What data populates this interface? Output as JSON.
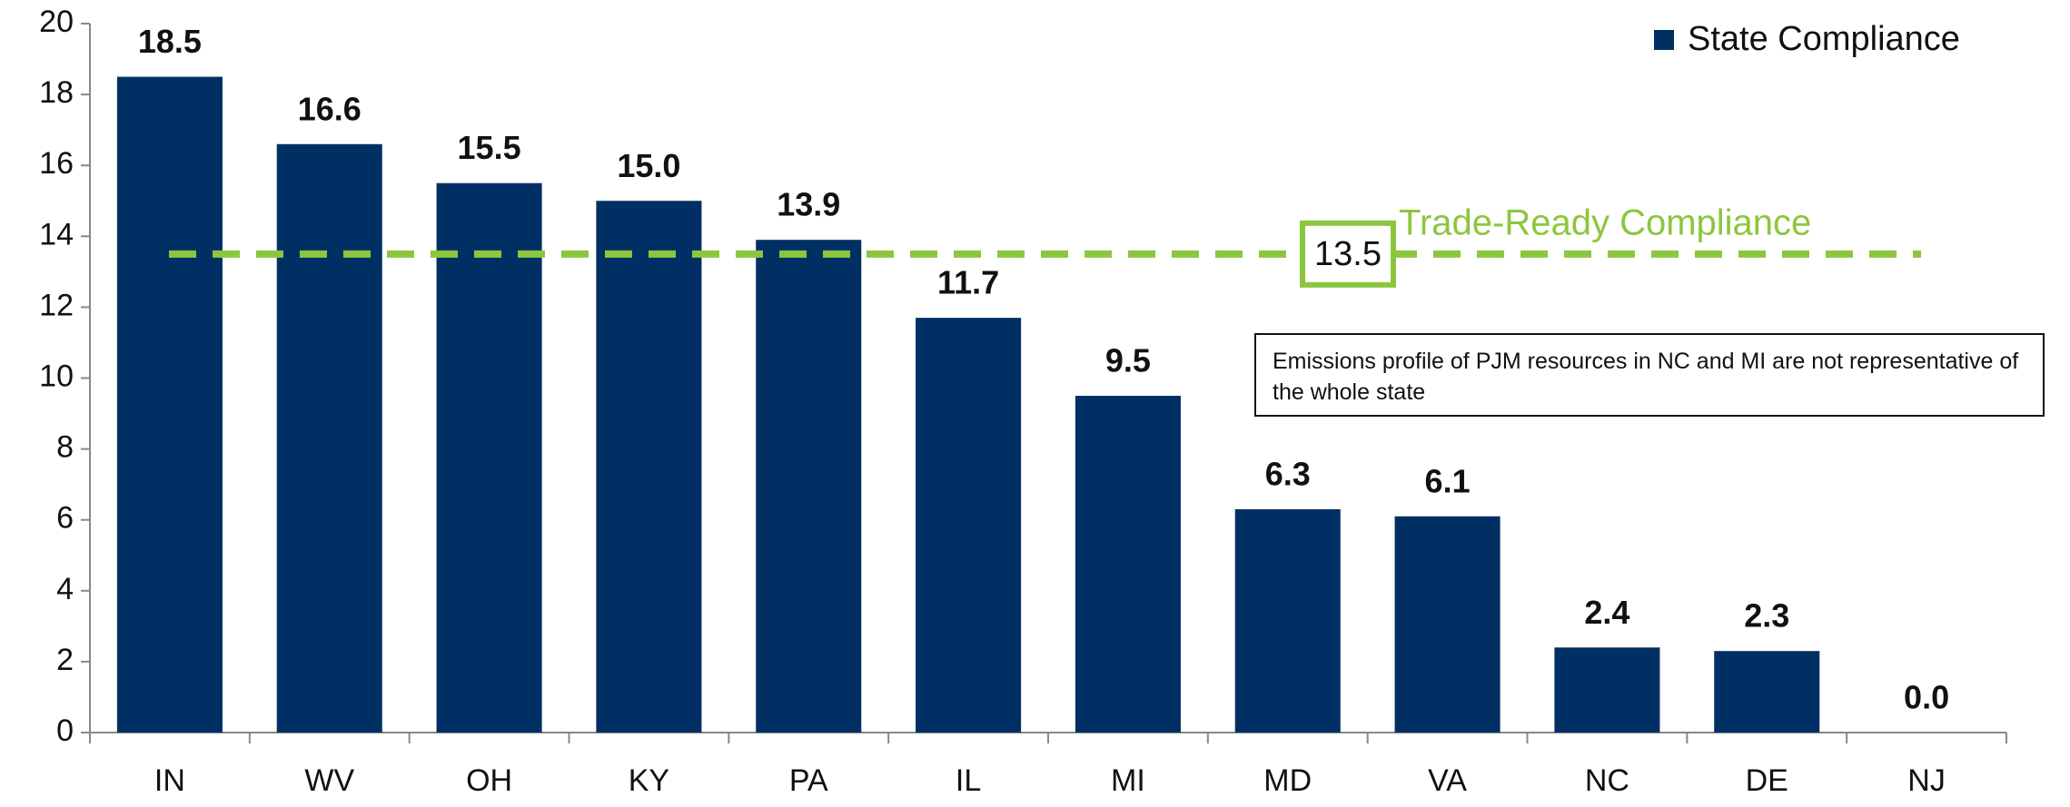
{
  "chart_data": {
    "type": "bar",
    "categories": [
      "IN",
      "WV",
      "OH",
      "KY",
      "PA",
      "IL",
      "MI",
      "MD",
      "VA",
      "NC",
      "DE",
      "NJ"
    ],
    "series": [
      {
        "name": "State Compliance",
        "color": "#003063",
        "values": [
          18.5,
          16.6,
          15.5,
          15.0,
          13.9,
          11.7,
          9.5,
          6.3,
          6.1,
          2.4,
          2.3,
          0.0
        ],
        "value_labels": [
          "18.5",
          "16.6",
          "15.5",
          "15.0",
          "13.9",
          "11.7",
          "9.5",
          "6.3",
          "6.1",
          "2.4",
          "2.3",
          "0.0"
        ]
      }
    ],
    "ylim": [
      0,
      20
    ],
    "yticks": [
      0,
      2,
      4,
      6,
      8,
      10,
      12,
      14,
      16,
      18,
      20
    ],
    "legend": "top-right",
    "reference_line": {
      "value": 13.5,
      "label": "Trade-Ready Compliance",
      "color": "#8cc63e"
    },
    "annotation": "Emissions profile of PJM resources in NC and MI are not representative of the whole state"
  }
}
